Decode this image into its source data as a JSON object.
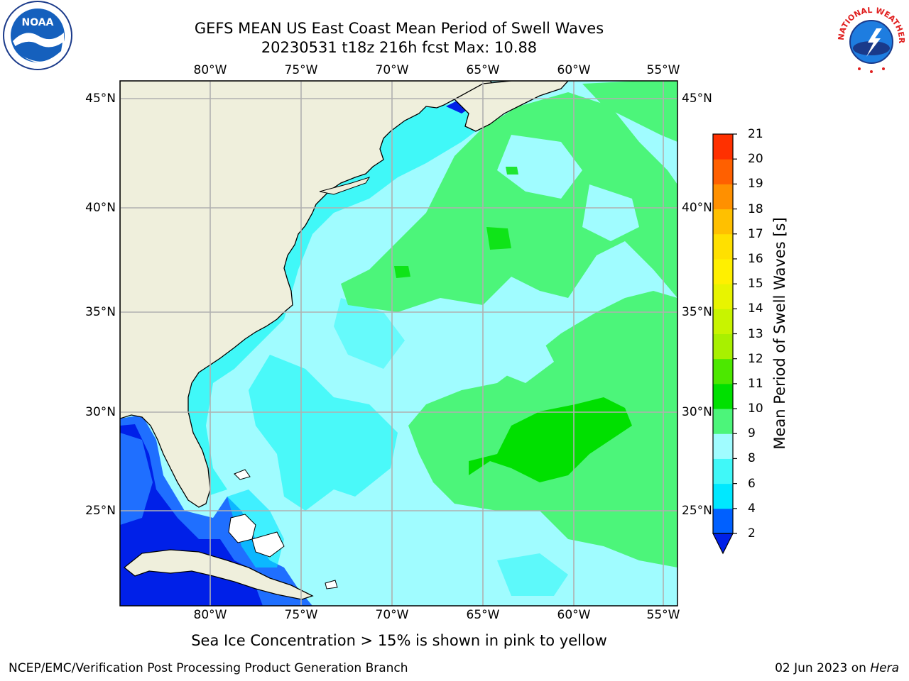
{
  "title": {
    "line1": "GEFS MEAN US East Coast Mean Period of Swell Waves",
    "line2": "20230531 t18z 216h fcst   Max: 10.88"
  },
  "axes": {
    "lon_labels": [
      "80°W",
      "75°W",
      "70°W",
      "65°W",
      "60°W",
      "55°W"
    ],
    "lat_labels": [
      "45°N",
      "40°N",
      "35°N",
      "30°N",
      "25°N"
    ],
    "lon_values": [
      -80,
      -75,
      -70,
      -65,
      -60,
      -55
    ],
    "lat_values": [
      45,
      40,
      35,
      30,
      25
    ],
    "lon_range": [
      -85,
      -54.2
    ],
    "lat_range": [
      20.5,
      45.8
    ],
    "grid": true
  },
  "colorbar": {
    "title": "Mean Period of Swell Waves [s]",
    "ticks": [
      "2",
      "4",
      "6",
      "8",
      "9",
      "10",
      "11",
      "12",
      "13",
      "14",
      "15",
      "16",
      "17",
      "18",
      "19",
      "20",
      "21"
    ],
    "colors": [
      "#0060ff",
      "#00e8ff",
      "#40f8f8",
      "#a0fcff",
      "#4cf57a",
      "#00e000",
      "#4ce800",
      "#a8f000",
      "#c8f400",
      "#e8f400",
      "#fff000",
      "#ffe000",
      "#ffc000",
      "#ff9000",
      "#ff6000",
      "#ff3000"
    ],
    "under_color": "#0020e8"
  },
  "colors": {
    "land": "#efefdc",
    "ocean_base": "#a0fcff",
    "band_6_8": "#40f8f8",
    "band_9_10": "#4cf57a",
    "band_10_11": "#00e000",
    "band_4_6": "#00e8ff",
    "band_2_4": "#1f6fff",
    "band_under": "#0020e8",
    "grid": "#b0b0b0"
  },
  "footnote": "Sea Ice Concentration > 15% is shown in pink to yellow",
  "credit": "NCEP/EMC/Verification Post Processing Product Generation Branch",
  "date": {
    "text": "02 Jun 2023 on",
    "machine": "Hera"
  },
  "logos": {
    "noaa": "NOAA",
    "nws": "NATIONAL WEATHER SERVICE"
  }
}
